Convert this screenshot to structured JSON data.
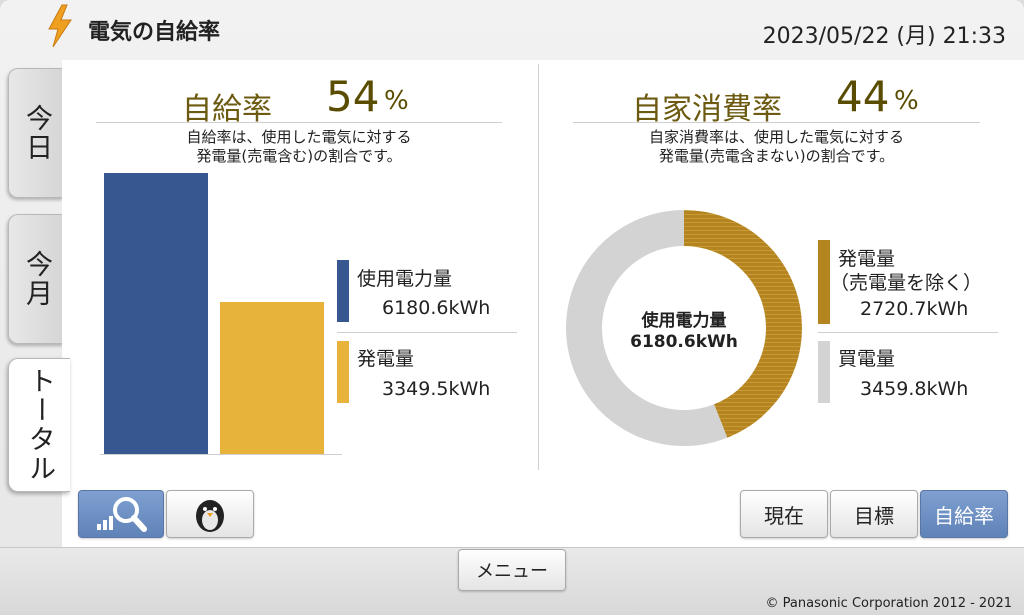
{
  "header": {
    "title": "電気の自給率",
    "datetime": "2023/05/22 (月) 21:33"
  },
  "tabs": [
    {
      "label": "今日",
      "active": false
    },
    {
      "label": "今月",
      "active": false
    },
    {
      "label": "トータル",
      "active": true
    }
  ],
  "self_sufficiency": {
    "label": "自給率",
    "value": "54",
    "unit": "%",
    "description_line1": "自給率は、使用した電気に対する",
    "description_line2": "発電量(売電含む)の割合です。"
  },
  "self_consumption": {
    "label": "自家消費率",
    "value": "44",
    "unit": "%",
    "description_line1": "自家消費率は、使用した電気に対する",
    "description_line2": "発電量(売電含まない)の割合です。"
  },
  "bar_legend": {
    "usage_label": "使用電力量",
    "usage_value": "6180.6kWh",
    "generation_label": "発電量",
    "generation_value": "3349.5kWh"
  },
  "donut_legend": {
    "center_label": "使用電力量",
    "center_value": "6180.6kWh",
    "generation_label_line1": "発電量",
    "generation_label_line2": "（売電量を除く）",
    "generation_value": "2720.7kWh",
    "purchase_label": "買電量",
    "purchase_value": "3459.8kWh"
  },
  "chart_data": [
    {
      "type": "bar",
      "categories": [
        "使用電力量",
        "発電量"
      ],
      "values": [
        6180.6,
        3349.5
      ],
      "colors": [
        "#36578f",
        "#e8b33a"
      ]
    },
    {
      "type": "pie",
      "categories": [
        "発電量（売電量を除く）",
        "買電量"
      ],
      "values": [
        2720.7,
        3459.8
      ],
      "colors": [
        "#b48420",
        "#d3d3d3"
      ]
    }
  ],
  "bottom": {
    "view_graph_icon": "graph-search-icon",
    "character_icon": "penguin-icon",
    "now_label": "現在",
    "target_label": "目標",
    "rate_label": "自給率",
    "menu_label": "メニュー",
    "copyright": "© Panasonic Corporation 2012 - 2021"
  },
  "colors": {
    "usage": "#36578f",
    "generation": "#e8b33a",
    "generation_dark": "#b48420",
    "purchase": "#d3d3d3",
    "accent_text": "#5a4c00",
    "active_button": "#6b8cc2"
  }
}
